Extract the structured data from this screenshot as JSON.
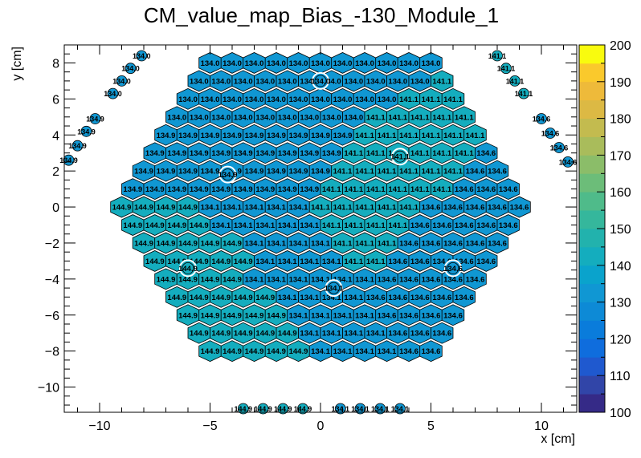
{
  "chart_data": {
    "type": "heatmap",
    "title": "CM_value_map_Bias_-130_Module_1",
    "xlabel": "x [cm]",
    "ylabel": "y [cm]",
    "xlim": [
      -11.6,
      11.6
    ],
    "ylim": [
      -11.4,
      9.0
    ],
    "x_ticks": [
      -10,
      -5,
      0,
      5,
      10
    ],
    "y_ticks": [
      -10,
      -8,
      -6,
      -4,
      -2,
      0,
      2,
      4,
      6,
      8
    ],
    "x_tick_labels": [
      "−10",
      "−5",
      "0",
      "5",
      "10"
    ],
    "y_tick_labels": [
      "−10",
      "−8",
      "−6",
      "−4",
      "−2",
      "0",
      "2",
      "4",
      "6",
      "8"
    ],
    "colorbar": {
      "min": 100,
      "max": 200,
      "levels": 20,
      "ticks": [
        100,
        110,
        120,
        130,
        140,
        150,
        160,
        170,
        180,
        190,
        200
      ],
      "palette": [
        "#352a87",
        "#3145a8",
        "#1f59cf",
        "#0f6ddd",
        "#0a7cdb",
        "#0d8ad6",
        "#1097d3",
        "#0aa3cc",
        "#14adbe",
        "#22b2ad",
        "#35b79c",
        "#4fbb8a",
        "#6cbd79",
        "#8bbd69",
        "#a9bc5b",
        "#c3bb4f",
        "#dcb944",
        "#eeba3a",
        "#fac92c",
        "#f9fb0e"
      ]
    },
    "series": [
      {
        "values_range": "rows of hexagonal cells",
        "note_free": true
      }
    ],
    "rows": [
      {
        "y": 8.0,
        "x_start": -5.0,
        "values": [
          134.0,
          134.0,
          134.0,
          134.0,
          134.0,
          134.0,
          134.0,
          134.0,
          134.0,
          134.0,
          134.0
        ]
      },
      {
        "y": 7.0,
        "x_start": -5.5,
        "values": [
          134.0,
          134.0,
          134.0,
          134.0,
          134.0,
          134.0,
          134.0,
          134.0,
          134.0,
          134.0,
          134.0,
          141.1
        ]
      },
      {
        "y": 6.0,
        "x_start": -6.0,
        "values": [
          134.0,
          134.0,
          134.0,
          134.0,
          134.0,
          134.0,
          134.0,
          134.0,
          134.0,
          134.0,
          141.1,
          141.1,
          141.1
        ]
      },
      {
        "y": 5.0,
        "x_start": -6.5,
        "values": [
          134.0,
          134.0,
          134.0,
          134.0,
          134.0,
          134.0,
          134.0,
          134.0,
          134.0,
          141.1,
          141.1,
          141.1,
          141.1,
          141.1
        ]
      },
      {
        "y": 4.0,
        "x_start": -7.0,
        "values": [
          134.9,
          134.9,
          134.9,
          134.9,
          134.9,
          134.9,
          134.9,
          134.9,
          134.9,
          141.1,
          141.1,
          141.1,
          141.1,
          141.1,
          141.1
        ]
      },
      {
        "y": 3.0,
        "x_start": -7.5,
        "values": [
          134.9,
          134.9,
          134.9,
          134.9,
          134.9,
          134.9,
          134.9,
          134.9,
          134.9,
          141.1,
          141.1,
          141.1,
          141.1,
          141.1,
          141.1,
          134.6
        ]
      },
      {
        "y": 2.0,
        "x_start": -8.0,
        "values": [
          134.9,
          134.9,
          134.9,
          134.9,
          134.9,
          134.9,
          134.9,
          134.9,
          134.9,
          141.1,
          141.1,
          141.1,
          141.1,
          141.1,
          141.1,
          134.6,
          134.6
        ]
      },
      {
        "y": 1.0,
        "x_start": -8.5,
        "values": [
          134.9,
          134.9,
          134.9,
          134.9,
          134.9,
          134.9,
          134.9,
          134.9,
          134.9,
          141.1,
          141.1,
          141.1,
          141.1,
          141.1,
          141.1,
          134.6,
          134.6,
          134.6
        ]
      },
      {
        "y": 0.0,
        "x_start": -9.0,
        "values": [
          144.9,
          144.9,
          144.9,
          144.9,
          134.1,
          134.1,
          134.1,
          134.1,
          134.1,
          141.1,
          141.1,
          141.1,
          141.1,
          141.1,
          134.6,
          134.6,
          134.6,
          134.6,
          134.6
        ]
      },
      {
        "y": -1.0,
        "x_start": -8.5,
        "values": [
          144.9,
          144.9,
          144.9,
          144.9,
          134.1,
          134.1,
          134.1,
          134.1,
          134.1,
          141.1,
          141.1,
          141.1,
          141.1,
          134.6,
          134.6,
          134.6,
          134.6,
          134.6
        ]
      },
      {
        "y": -2.0,
        "x_start": -8.0,
        "values": [
          144.9,
          144.9,
          144.9,
          144.9,
          144.9,
          134.1,
          134.1,
          134.1,
          134.1,
          141.1,
          141.1,
          141.1,
          134.6,
          134.6,
          134.6,
          134.6,
          134.6
        ]
      },
      {
        "y": -3.0,
        "x_start": -7.5,
        "values": [
          144.9,
          144.9,
          144.9,
          144.9,
          144.9,
          134.1,
          134.1,
          134.1,
          134.1,
          141.1,
          141.1,
          134.6,
          134.6,
          134.6,
          134.6,
          134.6
        ]
      },
      {
        "y": -4.0,
        "x_start": -7.0,
        "values": [
          144.9,
          144.9,
          144.9,
          144.9,
          134.1,
          134.1,
          134.1,
          134.1,
          134.1,
          134.1,
          134.6,
          134.6,
          134.6,
          134.6,
          134.6
        ]
      },
      {
        "y": -5.0,
        "x_start": -6.5,
        "values": [
          144.9,
          144.9,
          144.9,
          144.9,
          144.9,
          134.1,
          134.1,
          134.1,
          134.1,
          134.6,
          134.6,
          134.6,
          134.6,
          134.6
        ]
      },
      {
        "y": -6.0,
        "x_start": -6.0,
        "values": [
          144.9,
          144.9,
          144.9,
          144.9,
          144.9,
          134.1,
          134.1,
          134.1,
          134.1,
          134.6,
          134.6,
          134.6,
          134.6
        ]
      },
      {
        "y": -7.0,
        "x_start": -5.5,
        "values": [
          144.9,
          144.9,
          144.9,
          144.9,
          144.9,
          134.1,
          134.1,
          134.1,
          134.1,
          134.6,
          134.6,
          134.6
        ]
      },
      {
        "y": -8.0,
        "x_start": -5.0,
        "values": [
          144.9,
          144.9,
          144.9,
          144.9,
          144.9,
          134.1,
          134.1,
          134.1,
          134.1,
          134.6,
          134.6
        ]
      }
    ],
    "calibration_cells": [
      {
        "x": 0.0,
        "y": 7.0,
        "value": 134.0
      },
      {
        "x": -4.2,
        "y": 1.8,
        "value": 134.9
      },
      {
        "x": 3.6,
        "y": 2.8,
        "value": 141.1
      },
      {
        "x": -6.0,
        "y": -3.4,
        "value": 144.9
      },
      {
        "x": 0.6,
        "y": -4.5,
        "value": 134.1
      },
      {
        "x": 6.0,
        "y": -3.4,
        "value": 134.6
      }
    ],
    "outer_cells": [
      {
        "x": -8.1,
        "y": 8.4,
        "value": 134.0
      },
      {
        "x": -8.6,
        "y": 7.7,
        "value": 134.0
      },
      {
        "x": -9.0,
        "y": 7.0,
        "value": 134.0
      },
      {
        "x": -9.4,
        "y": 6.3,
        "value": 134.0
      },
      {
        "x": -10.2,
        "y": 4.9,
        "value": 134.9
      },
      {
        "x": -10.6,
        "y": 4.2,
        "value": 134.9
      },
      {
        "x": -11.0,
        "y": 3.4,
        "value": 134.9
      },
      {
        "x": -11.4,
        "y": 2.6,
        "value": 134.9
      },
      {
        "x": 8.0,
        "y": 8.4,
        "value": 141.1
      },
      {
        "x": 8.4,
        "y": 7.7,
        "value": 141.1
      },
      {
        "x": 8.8,
        "y": 7.0,
        "value": 141.1
      },
      {
        "x": 9.2,
        "y": 6.3,
        "value": 141.1
      },
      {
        "x": 10.0,
        "y": 4.9,
        "value": 134.6
      },
      {
        "x": 10.4,
        "y": 4.1,
        "value": 134.6
      },
      {
        "x": 10.8,
        "y": 3.3,
        "value": 134.6
      },
      {
        "x": 11.2,
        "y": 2.5,
        "value": 134.6
      },
      {
        "x": -3.5,
        "y": -11.2,
        "value": 144.9
      },
      {
        "x": -2.6,
        "y": -11.2,
        "value": 144.9
      },
      {
        "x": -1.7,
        "y": -11.2,
        "value": 144.9
      },
      {
        "x": -0.8,
        "y": -11.2,
        "value": 144.9
      },
      {
        "x": 0.9,
        "y": -11.2,
        "value": 134.1
      },
      {
        "x": 1.8,
        "y": -11.2,
        "value": 134.1
      },
      {
        "x": 2.7,
        "y": -11.2,
        "value": 134.1
      },
      {
        "x": 3.6,
        "y": -11.2,
        "value": 134.1
      }
    ]
  }
}
